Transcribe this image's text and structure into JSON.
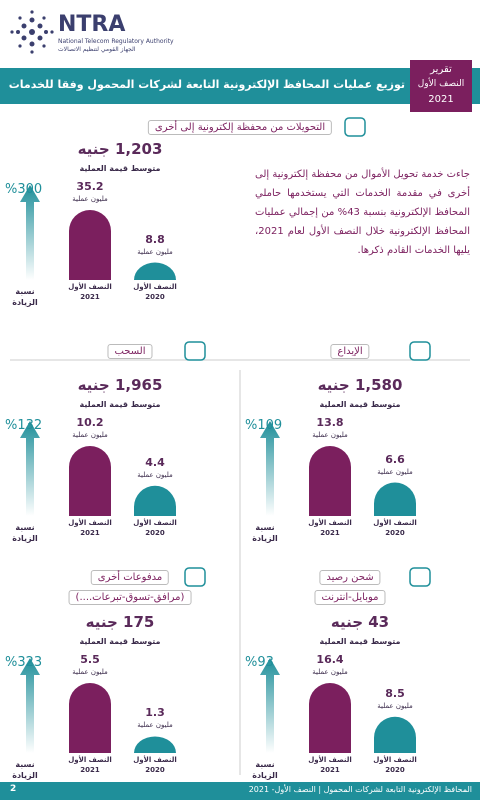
{
  "header": {
    "logo": "NTRA",
    "logo_en": "National Telecom Regulatory Authority",
    "logo_ar": "الجهاز القومي لتنظيم الاتصالات",
    "title": "توزيع عمليات المحافظ الإلكترونية التابعة لشركات المحمول وفقا للخدمات",
    "badge": [
      "تقرير",
      "النصف الأول",
      "2021"
    ]
  },
  "intro_text": "جاءت خدمة تحويل الأموال من محفظة إلكترونية إلى أخرى في مقدمة الخدمات التي يستخدمها حاملي المحافظ الإلكترونية بنسبة 43% من إجمالي عمليات المحافظ الإلكترونية خلال النصف الأول لعام 2021، يليها الخدمات القادم ذكرها.",
  "panels": [
    {
      "heading": [
        "التحويلات من محفظة إلكترونية إلى أخرى"
      ],
      "average": "1,203 جنيه",
      "average_label": "متوسط قيمة العملية",
      "increase": "%300",
      "increase_label": "نسبة الزيادة",
      "bars": [
        {
          "value": 35.2,
          "unit": "مليون عملية",
          "period": "النصف الأول",
          "year": "2021"
        },
        {
          "value": 8.8,
          "unit": "مليون عملية",
          "period": "النصف الأول",
          "year": "2020"
        }
      ]
    },
    {
      "heading": [
        "السحب"
      ],
      "average": "1,965 جنيه",
      "average_label": "متوسط قيمة العملية",
      "increase": "%132",
      "increase_label": "نسبة الزيادة",
      "bars": [
        {
          "value": 10.2,
          "unit": "مليون عملية",
          "period": "النصف الأول",
          "year": "2021"
        },
        {
          "value": 4.4,
          "unit": "مليون عملية",
          "period": "النصف الأول",
          "year": "2020"
        }
      ]
    },
    {
      "heading": [
        "الإيداع"
      ],
      "average": "1,580 جنيه",
      "average_label": "متوسط قيمة العملية",
      "increase": "%109",
      "increase_label": "نسبة الزيادة",
      "bars": [
        {
          "value": 13.8,
          "unit": "مليون عملية",
          "period": "النصف الأول",
          "year": "2021"
        },
        {
          "value": 6.6,
          "unit": "مليون عملية",
          "period": "النصف الأول",
          "year": "2020"
        }
      ]
    },
    {
      "heading": [
        "مدفوعات أخرى",
        "(مرافق-تسوق-تبرعات....)"
      ],
      "average": "175 جنيه",
      "average_label": "متوسط قيمة العملية",
      "increase": "%323",
      "increase_label": "نسبة الزيادة",
      "bars": [
        {
          "value": 5.5,
          "unit": "مليون عملية",
          "period": "النصف الأول",
          "year": "2021"
        },
        {
          "value": 1.3,
          "unit": "مليون عملية",
          "period": "النصف الأول",
          "year": "2020"
        }
      ]
    },
    {
      "heading": [
        "شحن رصيد",
        "موبايل-انترنت"
      ],
      "average": "43 جنيه",
      "average_label": "متوسط قيمة العملية",
      "increase": "%93",
      "increase_label": "نسبة الزيادة",
      "bars": [
        {
          "value": 16.4,
          "unit": "مليون عملية",
          "period": "النصف الأول",
          "year": "2021"
        },
        {
          "value": 8.5,
          "unit": "مليون عملية",
          "period": "النصف الأول",
          "year": "2020"
        }
      ]
    }
  ],
  "footer": {
    "text": "المحافظ الإلكترونية التابعة لشركات المحمول | النصف الأول- 2021",
    "page": "2"
  }
}
